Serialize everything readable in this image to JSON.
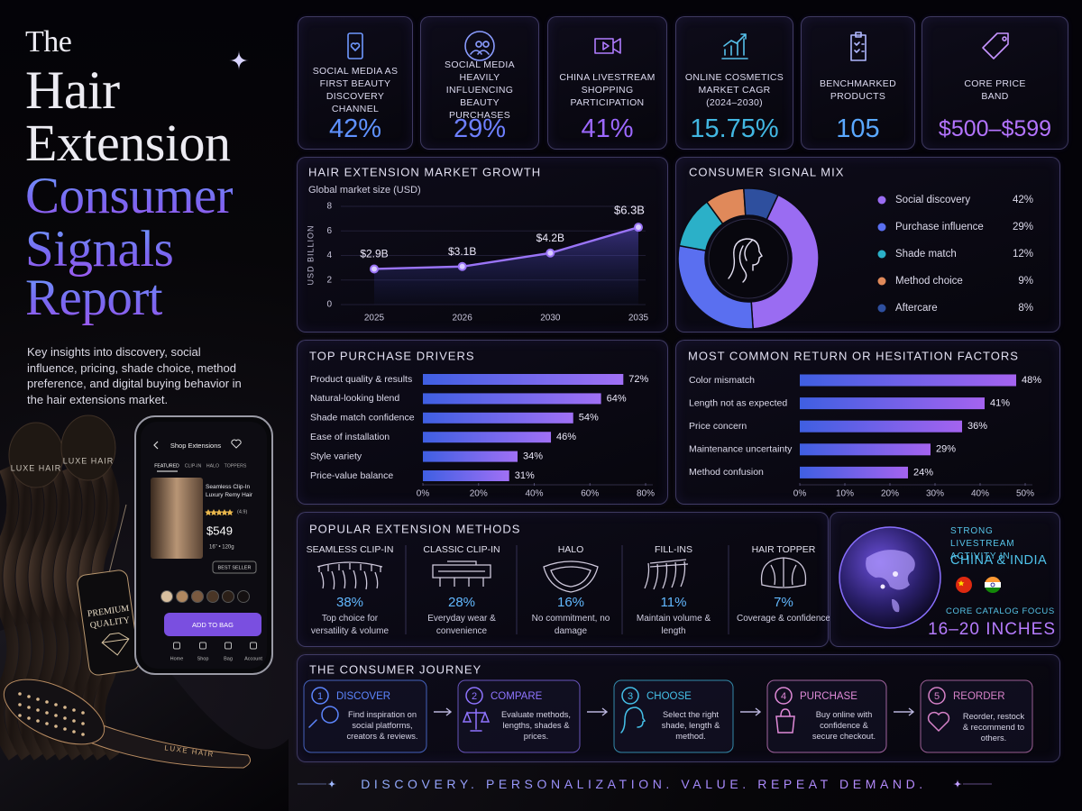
{
  "header": {
    "title_lines": [
      "The",
      "Hair",
      "Extension",
      "Consumer",
      "Signals",
      "Report"
    ],
    "description": "Key insights into discovery, social influence, pricing, shade choice, method preference, and digital buying behavior in the hair extensions market."
  },
  "product_mockup": {
    "brand": "LUXE HAIR",
    "tag": "PREMIUM QUALITY",
    "screen_title": "Shop Extensions",
    "tabs": [
      "FEATURED",
      "CLIP-IN",
      "HALO",
      "TOPPERS"
    ],
    "product_name": "Seamless Clip-In Luxury Remy Hair",
    "rating": "(4.9)",
    "price": "$549",
    "specs": "16\" • 120g",
    "badge": "BEST SELLER",
    "button": "ADD TO BAG",
    "nav": [
      "Home",
      "Shop",
      "Bag",
      "Account"
    ]
  },
  "kpis": [
    {
      "label": "SOCIAL MEDIA AS FIRST BEAUTY DISCOVERY CHANNEL",
      "value": "42%"
    },
    {
      "label": "SOCIAL MEDIA HEAVILY INFLUENCING BEAUTY PURCHASES",
      "value": "29%"
    },
    {
      "label": "CHINA LIVESTREAM SHOPPING PARTICIPATION",
      "value": "41%"
    },
    {
      "label": "ONLINE COSMETICS MARKET CAGR (2024–2030)",
      "value": "15.75%"
    },
    {
      "label": "BENCHMARKED PRODUCTS",
      "value": "105"
    },
    {
      "label": "CORE PRICE BAND",
      "value": "$500–$599"
    }
  ],
  "chart_data": [
    {
      "type": "line",
      "title": "HAIR EXTENSION MARKET GROWTH",
      "subtitle": "Global market size (USD)",
      "y_label": "USD BILLION",
      "categories": [
        "2025",
        "2026",
        "2030",
        "2035"
      ],
      "values": [
        2.9,
        3.1,
        4.2,
        6.3
      ],
      "value_labels": [
        "$2.9B",
        "$3.1B",
        "$4.2B",
        "$6.3B"
      ],
      "color": "#9a74f7",
      "ylim": [
        0,
        8
      ],
      "yticks": [
        0,
        2,
        4,
        6,
        8
      ],
      "grid": true
    },
    {
      "type": "pie",
      "donut": true,
      "title": "CONSUMER SIGNAL MIX",
      "categories": [
        "Social discovery",
        "Purchase influence",
        "Shade match",
        "Method choice",
        "Aftercare"
      ],
      "values": [
        42,
        29,
        12,
        9,
        8
      ],
      "value_labels": [
        "42%",
        "29%",
        "12%",
        "9%",
        "8%"
      ],
      "colors": [
        "#9a6cf2",
        "#5a6ff0",
        "#2bb0c8",
        "#e0895a",
        "#2e4f9e"
      ]
    },
    {
      "type": "bar",
      "orientation": "horizontal",
      "title": "TOP PURCHASE DRIVERS",
      "categories": [
        "Product quality & results",
        "Natural-looking blend",
        "Shade match confidence",
        "Ease of installation",
        "Style variety",
        "Price-value balance"
      ],
      "values": [
        72,
        64,
        54,
        46,
        34,
        31
      ],
      "value_labels": [
        "72%",
        "64%",
        "54%",
        "46%",
        "34%",
        "31%"
      ],
      "color": "#a070f5",
      "xlim": [
        0,
        80
      ],
      "xticks": [
        {
          "value": 0,
          "label": "0%"
        },
        {
          "value": 20,
          "label": "20%"
        },
        {
          "value": 40,
          "label": "40%"
        },
        {
          "value": 60,
          "label": "60%"
        },
        {
          "value": 80,
          "label": "80%"
        }
      ]
    },
    {
      "type": "bar",
      "orientation": "horizontal",
      "title": "MOST COMMON RETURN OR HESITATION FACTORS",
      "categories": [
        "Color mismatch",
        "Length not as expected",
        "Price concern",
        "Maintenance uncertainty",
        "Method confusion"
      ],
      "values": [
        48,
        41,
        36,
        29,
        24
      ],
      "value_labels": [
        "48%",
        "41%",
        "36%",
        "29%",
        "24%"
      ],
      "color": "#a463ef",
      "xlim": [
        0,
        50
      ],
      "xticks": [
        {
          "value": 0,
          "label": "0%"
        },
        {
          "value": 10,
          "label": "10%"
        },
        {
          "value": 20,
          "label": "20%"
        },
        {
          "value": 30,
          "label": "30%"
        },
        {
          "value": 40,
          "label": "40%"
        },
        {
          "value": 50,
          "label": "50%"
        }
      ]
    }
  ],
  "methods": {
    "title": "POPULAR EXTENSION METHODS",
    "items": [
      {
        "name": "SEAMLESS CLIP-IN",
        "share": "38%",
        "note": "Top choice for versatility & volume"
      },
      {
        "name": "CLASSIC CLIP-IN",
        "share": "28%",
        "note": "Everyday wear & convenience"
      },
      {
        "name": "HALO",
        "share": "16%",
        "note": "No commitment, no damage"
      },
      {
        "name": "FILL-INS",
        "share": "11%",
        "note": "Maintain volume & length"
      },
      {
        "name": "HAIR TOPPER",
        "share": "7%",
        "note": "Coverage & confidence"
      }
    ]
  },
  "livestream": {
    "heading": "STRONG LIVESTREAM ACTIVITY IN",
    "markets": "CHINA & INDIA",
    "focus_label": "CORE CATALOG FOCUS",
    "focus_value": "16–20 INCHES"
  },
  "journey": {
    "title": "THE CONSUMER JOURNEY",
    "steps": [
      {
        "number": "1",
        "name": "DISCOVER",
        "text": "Find inspiration on social platforms, creators & reviews."
      },
      {
        "number": "2",
        "name": "COMPARE",
        "text": "Evaluate methods, lengths, shades & prices."
      },
      {
        "number": "3",
        "name": "CHOOSE",
        "text": "Select the right shade, length & method."
      },
      {
        "number": "4",
        "name": "PURCHASE",
        "text": "Buy online with confidence & secure checkout."
      },
      {
        "number": "5",
        "name": "REORDER",
        "text": "Reorder, restock & recommend to others."
      }
    ]
  },
  "footer": "DISCOVERY. PERSONALIZATION. VALUE. REPEAT DEMAND."
}
